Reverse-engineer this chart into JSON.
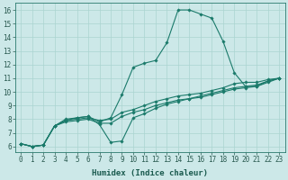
{
  "xlabel": "Humidex (Indice chaleur)",
  "bg_color": "#cce8e8",
  "grid_color": "#aad4d0",
  "line_color": "#1a7a6a",
  "xlim": [
    -0.5,
    23.5
  ],
  "ylim": [
    5.6,
    16.5
  ],
  "xticks": [
    0,
    1,
    2,
    3,
    4,
    5,
    6,
    7,
    8,
    9,
    10,
    11,
    12,
    13,
    14,
    15,
    16,
    17,
    18,
    19,
    20,
    21,
    22,
    23
  ],
  "yticks": [
    6,
    7,
    8,
    9,
    10,
    11,
    12,
    13,
    14,
    15,
    16
  ],
  "lines": [
    {
      "x": [
        0,
        1,
        2,
        3,
        4,
        5,
        6,
        7,
        8,
        9,
        10,
        11,
        12,
        13,
        14,
        15,
        16,
        17,
        18,
        19,
        20,
        21,
        22,
        23
      ],
      "y": [
        6.2,
        6.0,
        6.1,
        7.5,
        8.0,
        8.1,
        8.2,
        7.8,
        8.1,
        9.8,
        11.8,
        12.1,
        12.3,
        13.6,
        16.0,
        16.0,
        15.7,
        15.4,
        13.7,
        11.4,
        10.4,
        10.4,
        10.8,
        11.0
      ]
    },
    {
      "x": [
        0,
        1,
        2,
        3,
        4,
        5,
        6,
        7,
        8,
        9,
        10,
        11,
        12,
        13,
        14,
        15,
        16,
        17,
        18,
        19,
        20,
        21,
        22,
        23
      ],
      "y": [
        6.2,
        6.0,
        6.1,
        7.5,
        7.9,
        8.1,
        8.2,
        7.6,
        6.3,
        6.4,
        8.1,
        8.4,
        8.8,
        9.1,
        9.3,
        9.5,
        9.7,
        9.9,
        10.1,
        10.3,
        10.4,
        10.5,
        10.8,
        11.0
      ]
    },
    {
      "x": [
        0,
        1,
        2,
        3,
        4,
        5,
        6,
        7,
        8,
        9,
        10,
        11,
        12,
        13,
        14,
        15,
        16,
        17,
        18,
        19,
        20,
        21,
        22,
        23
      ],
      "y": [
        6.2,
        6.0,
        6.1,
        7.5,
        7.9,
        8.0,
        8.1,
        7.9,
        8.0,
        8.5,
        8.7,
        9.0,
        9.3,
        9.5,
        9.7,
        9.8,
        9.9,
        10.1,
        10.3,
        10.6,
        10.7,
        10.7,
        10.9,
        11.0
      ]
    },
    {
      "x": [
        0,
        1,
        2,
        3,
        4,
        5,
        6,
        7,
        8,
        9,
        10,
        11,
        12,
        13,
        14,
        15,
        16,
        17,
        18,
        19,
        20,
        21,
        22,
        23
      ],
      "y": [
        6.2,
        6.0,
        6.1,
        7.5,
        7.8,
        7.9,
        8.0,
        7.7,
        7.7,
        8.2,
        8.5,
        8.7,
        9.0,
        9.2,
        9.4,
        9.5,
        9.6,
        9.8,
        10.0,
        10.2,
        10.3,
        10.4,
        10.7,
        11.0
      ]
    }
  ]
}
